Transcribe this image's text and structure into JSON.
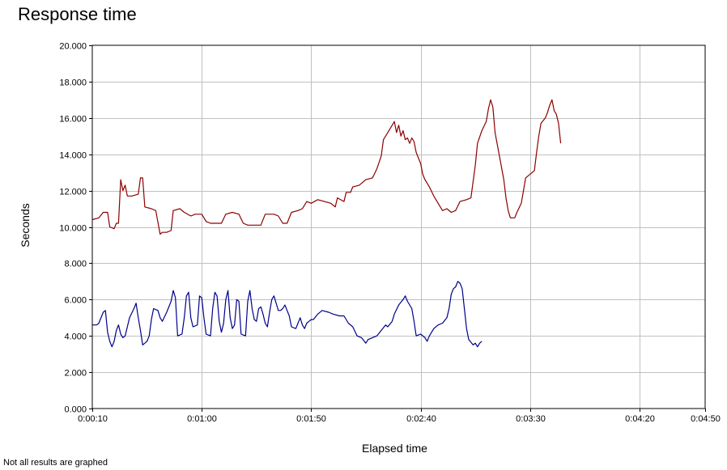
{
  "chart_data": {
    "type": "line",
    "title": "Response time",
    "xlabel": "Elapsed time",
    "ylabel": "Seconds",
    "note": "Not all results are graphed",
    "grid": true,
    "legend": "none",
    "xlim": [
      10,
      290
    ],
    "ylim": [
      0,
      20
    ],
    "x_ticks": [
      {
        "value": 10,
        "label": "0:00:10"
      },
      {
        "value": 60,
        "label": "0:01:00"
      },
      {
        "value": 110,
        "label": "0:01:50"
      },
      {
        "value": 160,
        "label": "0:02:40"
      },
      {
        "value": 210,
        "label": "0:03:30"
      },
      {
        "value": 260,
        "label": "0:04:20"
      },
      {
        "value": 290,
        "label": "0:04:50"
      }
    ],
    "y_ticks": [
      {
        "value": 0,
        "label": "0.000"
      },
      {
        "value": 2,
        "label": "2.000"
      },
      {
        "value": 4,
        "label": "4.000"
      },
      {
        "value": 6,
        "label": "6.000"
      },
      {
        "value": 8,
        "label": "8.000"
      },
      {
        "value": 10,
        "label": "10.000"
      },
      {
        "value": 12,
        "label": "12.000"
      },
      {
        "value": 14,
        "label": "14.000"
      },
      {
        "value": 16,
        "label": "16.000"
      },
      {
        "value": 18,
        "label": "18.000"
      },
      {
        "value": 20,
        "label": "20.000"
      }
    ],
    "series": [
      {
        "color": "#8b0000",
        "points": [
          [
            10,
            10.4
          ],
          [
            13,
            10.5
          ],
          [
            15,
            10.8
          ],
          [
            17,
            10.8
          ],
          [
            18,
            10.0
          ],
          [
            20,
            9.9
          ],
          [
            21,
            10.2
          ],
          [
            22,
            10.2
          ],
          [
            23,
            12.6
          ],
          [
            24,
            12.0
          ],
          [
            25,
            12.3
          ],
          [
            26,
            11.7
          ],
          [
            28,
            11.7
          ],
          [
            31,
            11.8
          ],
          [
            32,
            12.7
          ],
          [
            33,
            12.7
          ],
          [
            34,
            11.1
          ],
          [
            37,
            11.0
          ],
          [
            39,
            10.9
          ],
          [
            41,
            9.6
          ],
          [
            42,
            9.7
          ],
          [
            44,
            9.7
          ],
          [
            46,
            9.8
          ],
          [
            47,
            10.9
          ],
          [
            50,
            11.0
          ],
          [
            52,
            10.8
          ],
          [
            55,
            10.6
          ],
          [
            57,
            10.7
          ],
          [
            60,
            10.7
          ],
          [
            62,
            10.3
          ],
          [
            64,
            10.2
          ],
          [
            69,
            10.2
          ],
          [
            71,
            10.7
          ],
          [
            74,
            10.8
          ],
          [
            77,
            10.7
          ],
          [
            79,
            10.2
          ],
          [
            81,
            10.1
          ],
          [
            87,
            10.1
          ],
          [
            89,
            10.7
          ],
          [
            93,
            10.7
          ],
          [
            95,
            10.6
          ],
          [
            97,
            10.2
          ],
          [
            99,
            10.2
          ],
          [
            101,
            10.8
          ],
          [
            104,
            10.9
          ],
          [
            106,
            11.0
          ],
          [
            108,
            11.4
          ],
          [
            110,
            11.3
          ],
          [
            113,
            11.5
          ],
          [
            116,
            11.4
          ],
          [
            119,
            11.3
          ],
          [
            121,
            11.1
          ],
          [
            122,
            11.6
          ],
          [
            125,
            11.4
          ],
          [
            126,
            11.9
          ],
          [
            128,
            11.9
          ],
          [
            129,
            12.2
          ],
          [
            132,
            12.3
          ],
          [
            135,
            12.6
          ],
          [
            138,
            12.7
          ],
          [
            140,
            13.2
          ],
          [
            142,
            13.9
          ],
          [
            143,
            14.8
          ],
          [
            145,
            15.2
          ],
          [
            147,
            15.6
          ],
          [
            148,
            15.8
          ],
          [
            149,
            15.2
          ],
          [
            150,
            15.6
          ],
          [
            151,
            15.0
          ],
          [
            152,
            15.3
          ],
          [
            153,
            14.8
          ],
          [
            154,
            14.9
          ],
          [
            155,
            14.6
          ],
          [
            156,
            14.9
          ],
          [
            157,
            14.7
          ],
          [
            158,
            14.1
          ],
          [
            160,
            13.5
          ],
          [
            161,
            12.9
          ],
          [
            162,
            12.6
          ],
          [
            164,
            12.2
          ],
          [
            166,
            11.7
          ],
          [
            168,
            11.3
          ],
          [
            170,
            10.9
          ],
          [
            172,
            11.0
          ],
          [
            174,
            10.8
          ],
          [
            176,
            10.9
          ],
          [
            178,
            11.4
          ],
          [
            181,
            11.5
          ],
          [
            183,
            11.6
          ],
          [
            184,
            12.5
          ],
          [
            185,
            13.4
          ],
          [
            186,
            14.6
          ],
          [
            188,
            15.3
          ],
          [
            190,
            15.8
          ],
          [
            191,
            16.5
          ],
          [
            192,
            17.0
          ],
          [
            193,
            16.6
          ],
          [
            194,
            15.2
          ],
          [
            196,
            13.9
          ],
          [
            198,
            12.6
          ],
          [
            199,
            11.6
          ],
          [
            200,
            10.9
          ],
          [
            201,
            10.5
          ],
          [
            203,
            10.5
          ],
          [
            204,
            10.8
          ],
          [
            206,
            11.3
          ],
          [
            207,
            12.0
          ],
          [
            208,
            12.7
          ],
          [
            212,
            13.1
          ],
          [
            213,
            14.1
          ],
          [
            214,
            15.0
          ],
          [
            215,
            15.7
          ],
          [
            217,
            16.0
          ],
          [
            218,
            16.3
          ],
          [
            219,
            16.7
          ],
          [
            220,
            17.0
          ],
          [
            221,
            16.4
          ],
          [
            222,
            16.2
          ],
          [
            223,
            15.7
          ],
          [
            224,
            14.6
          ]
        ]
      },
      {
        "color": "#00008b",
        "points": [
          [
            10,
            4.6
          ],
          [
            12,
            4.6
          ],
          [
            13,
            4.7
          ],
          [
            15,
            5.3
          ],
          [
            16,
            5.4
          ],
          [
            17,
            4.2
          ],
          [
            18,
            3.7
          ],
          [
            19,
            3.4
          ],
          [
            20,
            3.7
          ],
          [
            21,
            4.3
          ],
          [
            22,
            4.6
          ],
          [
            23,
            4.1
          ],
          [
            24,
            3.9
          ],
          [
            25,
            4.0
          ],
          [
            26,
            4.5
          ],
          [
            27,
            5.0
          ],
          [
            29,
            5.5
          ],
          [
            30,
            5.8
          ],
          [
            31,
            5.0
          ],
          [
            32,
            4.3
          ],
          [
            33,
            3.5
          ],
          [
            35,
            3.7
          ],
          [
            36,
            4.0
          ],
          [
            37,
            4.9
          ],
          [
            38,
            5.5
          ],
          [
            40,
            5.4
          ],
          [
            41,
            5.0
          ],
          [
            42,
            4.8
          ],
          [
            44,
            5.3
          ],
          [
            46,
            5.9
          ],
          [
            47,
            6.5
          ],
          [
            48,
            6.1
          ],
          [
            49,
            4.0
          ],
          [
            51,
            4.1
          ],
          [
            52,
            5.0
          ],
          [
            53,
            6.2
          ],
          [
            54,
            6.4
          ],
          [
            55,
            5.0
          ],
          [
            56,
            4.5
          ],
          [
            58,
            4.6
          ],
          [
            59,
            6.2
          ],
          [
            60,
            6.1
          ],
          [
            61,
            5.0
          ],
          [
            62,
            4.1
          ],
          [
            64,
            4.0
          ],
          [
            65,
            5.5
          ],
          [
            66,
            6.4
          ],
          [
            67,
            6.2
          ],
          [
            68,
            4.8
          ],
          [
            69,
            4.2
          ],
          [
            70,
            4.7
          ],
          [
            71,
            6.0
          ],
          [
            72,
            6.5
          ],
          [
            73,
            5.0
          ],
          [
            74,
            4.4
          ],
          [
            75,
            4.6
          ],
          [
            76,
            6.0
          ],
          [
            77,
            5.9
          ],
          [
            78,
            4.1
          ],
          [
            80,
            4.0
          ],
          [
            81,
            5.9
          ],
          [
            82,
            6.5
          ],
          [
            83,
            5.5
          ],
          [
            84,
            4.9
          ],
          [
            85,
            4.8
          ],
          [
            86,
            5.5
          ],
          [
            87,
            5.6
          ],
          [
            88,
            5.2
          ],
          [
            89,
            4.7
          ],
          [
            90,
            4.5
          ],
          [
            91,
            5.3
          ],
          [
            92,
            6.0
          ],
          [
            93,
            6.2
          ],
          [
            94,
            5.8
          ],
          [
            95,
            5.4
          ],
          [
            96,
            5.4
          ],
          [
            97,
            5.5
          ],
          [
            98,
            5.7
          ],
          [
            99,
            5.4
          ],
          [
            100,
            5.1
          ],
          [
            101,
            4.5
          ],
          [
            103,
            4.4
          ],
          [
            104,
            4.7
          ],
          [
            105,
            5.0
          ],
          [
            106,
            4.6
          ],
          [
            107,
            4.4
          ],
          [
            108,
            4.7
          ],
          [
            110,
            4.9
          ],
          [
            111,
            4.9
          ],
          [
            113,
            5.2
          ],
          [
            115,
            5.4
          ],
          [
            118,
            5.3
          ],
          [
            120,
            5.2
          ],
          [
            123,
            5.1
          ],
          [
            125,
            5.1
          ],
          [
            127,
            4.7
          ],
          [
            129,
            4.5
          ],
          [
            131,
            4.0
          ],
          [
            133,
            3.9
          ],
          [
            135,
            3.6
          ],
          [
            136,
            3.8
          ],
          [
            138,
            3.9
          ],
          [
            140,
            4.0
          ],
          [
            142,
            4.3
          ],
          [
            144,
            4.6
          ],
          [
            145,
            4.5
          ],
          [
            147,
            4.8
          ],
          [
            148,
            5.2
          ],
          [
            150,
            5.7
          ],
          [
            152,
            6.0
          ],
          [
            153,
            6.2
          ],
          [
            154,
            5.9
          ],
          [
            156,
            5.5
          ],
          [
            157,
            4.8
          ],
          [
            158,
            4.0
          ],
          [
            160,
            4.1
          ],
          [
            162,
            3.9
          ],
          [
            163,
            3.7
          ],
          [
            164,
            4.0
          ],
          [
            166,
            4.4
          ],
          [
            168,
            4.6
          ],
          [
            170,
            4.7
          ],
          [
            172,
            5.0
          ],
          [
            173,
            5.5
          ],
          [
            174,
            6.3
          ],
          [
            175,
            6.6
          ],
          [
            176,
            6.7
          ],
          [
            177,
            7.0
          ],
          [
            178,
            6.9
          ],
          [
            179,
            6.6
          ],
          [
            180,
            5.5
          ],
          [
            181,
            4.4
          ],
          [
            182,
            3.8
          ],
          [
            184,
            3.5
          ],
          [
            185,
            3.6
          ],
          [
            186,
            3.4
          ],
          [
            187,
            3.6
          ],
          [
            188,
            3.7
          ]
        ]
      }
    ]
  }
}
